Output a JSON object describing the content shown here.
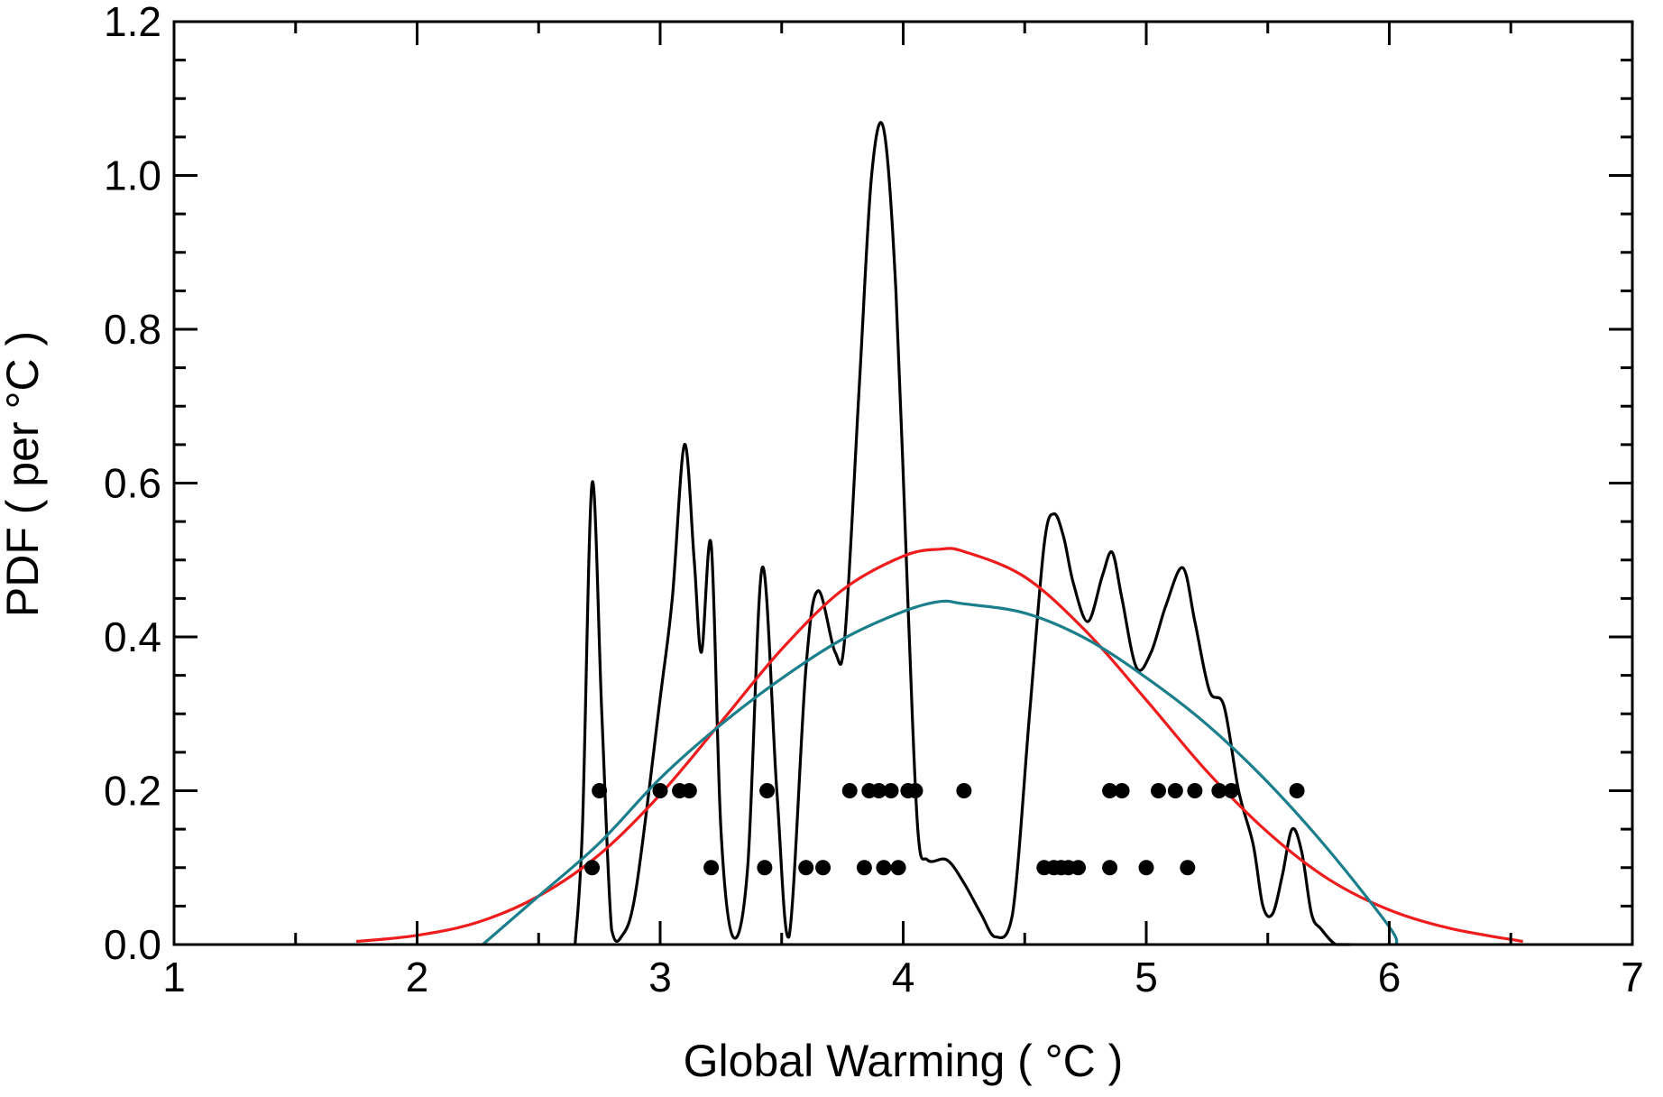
{
  "chart_data": {
    "type": "line",
    "title": "",
    "xlabel": "Global Warming ( °C )",
    "ylabel": "PDF ( per °C )",
    "xlim": [
      1,
      7
    ],
    "ylim": [
      0,
      1.2
    ],
    "x_ticks": [
      1,
      2,
      3,
      4,
      5,
      6,
      7
    ],
    "x_tick_labels": [
      "1",
      "2",
      "3",
      "4",
      "5",
      "6",
      "7"
    ],
    "y_ticks": [
      0,
      0.2,
      0.4,
      0.6,
      0.8,
      1.0,
      1.2
    ],
    "y_tick_labels": [
      "0.0",
      "0.2",
      "0.4",
      "0.6",
      "0.8",
      "1.0",
      "1.2"
    ],
    "grid": false,
    "series": [
      {
        "color": "#000000",
        "style": "kernel-density",
        "x": [
          2.65,
          2.68,
          2.72,
          2.76,
          2.8,
          2.84,
          2.9,
          3.0,
          3.05,
          3.1,
          3.14,
          3.17,
          3.21,
          3.25,
          3.3,
          3.36,
          3.42,
          3.48,
          3.53,
          3.6,
          3.65,
          3.72,
          3.76,
          3.82,
          3.87,
          3.92,
          3.97,
          4.02,
          4.06,
          4.1,
          4.18,
          4.25,
          4.32,
          4.38,
          4.45,
          4.52,
          4.58,
          4.62,
          4.66,
          4.7,
          4.76,
          4.82,
          4.86,
          4.9,
          4.96,
          5.02,
          5.08,
          5.15,
          5.2,
          5.26,
          5.32,
          5.38,
          5.44,
          5.48,
          5.52,
          5.56,
          5.6,
          5.64,
          5.68,
          5.72,
          5.78,
          5.84
        ],
        "y": [
          0.0,
          0.15,
          0.6,
          0.3,
          0.02,
          0.01,
          0.07,
          0.32,
          0.45,
          0.65,
          0.5,
          0.38,
          0.52,
          0.15,
          0.01,
          0.1,
          0.49,
          0.2,
          0.01,
          0.36,
          0.46,
          0.38,
          0.4,
          0.73,
          1.0,
          1.06,
          0.85,
          0.44,
          0.15,
          0.11,
          0.11,
          0.08,
          0.04,
          0.01,
          0.04,
          0.3,
          0.52,
          0.56,
          0.53,
          0.47,
          0.42,
          0.48,
          0.51,
          0.45,
          0.36,
          0.38,
          0.44,
          0.49,
          0.42,
          0.33,
          0.31,
          0.2,
          0.13,
          0.05,
          0.04,
          0.09,
          0.15,
          0.12,
          0.04,
          0.02,
          0.0,
          0.0
        ]
      },
      {
        "color": "#ee1c1c",
        "style": "gaussian-fit",
        "x": [
          1.75,
          2.0,
          2.25,
          2.5,
          2.75,
          3.0,
          3.25,
          3.5,
          3.75,
          4.0,
          4.15,
          4.25,
          4.5,
          4.75,
          5.0,
          5.25,
          5.5,
          5.75,
          6.0,
          6.25,
          6.55
        ],
        "y": [
          0.004,
          0.012,
          0.029,
          0.063,
          0.117,
          0.195,
          0.289,
          0.384,
          0.461,
          0.505,
          0.514,
          0.511,
          0.478,
          0.408,
          0.318,
          0.225,
          0.146,
          0.085,
          0.045,
          0.021,
          0.004
        ]
      },
      {
        "color": "#1a7f8a",
        "style": "quadratic-fit",
        "x": [
          2.27,
          2.5,
          2.75,
          3.0,
          3.25,
          3.5,
          3.75,
          4.0,
          4.15,
          4.25,
          4.5,
          4.75,
          5.0,
          5.25,
          5.5,
          5.75,
          6.0,
          6.03
        ],
        "y": [
          0.0,
          0.063,
          0.132,
          0.216,
          0.286,
          0.346,
          0.397,
          0.433,
          0.446,
          0.443,
          0.431,
          0.398,
          0.347,
          0.286,
          0.211,
          0.123,
          0.023,
          0.0
        ]
      }
    ],
    "points": {
      "color": "#000000",
      "row_top": {
        "y": 0.2,
        "x": [
          2.75,
          3.0,
          3.08,
          3.12,
          3.44,
          3.78,
          3.86,
          3.9,
          3.95,
          4.02,
          4.05,
          4.25,
          4.85,
          4.9,
          5.05,
          5.12,
          5.2,
          5.3,
          5.35,
          5.62
        ]
      },
      "row_bottom": {
        "y": 0.1,
        "x": [
          2.72,
          3.21,
          3.43,
          3.6,
          3.67,
          3.84,
          3.92,
          3.98,
          4.58,
          4.62,
          4.65,
          4.68,
          4.72,
          4.85,
          5.0,
          5.17
        ]
      }
    }
  }
}
